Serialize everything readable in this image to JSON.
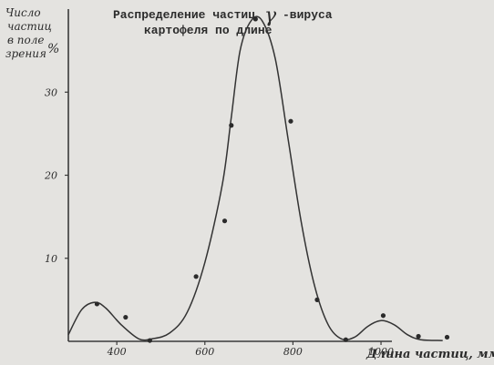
{
  "chart_data": {
    "type": "line",
    "title_line1": "Распределение частиц",
    "title_gamma": "γ",
    "title_line1_end": "-вируса",
    "title_line2": "картофеля по длине",
    "ylabel_lines": [
      "Число",
      "частиц",
      "в поле",
      "зрения",
      "%"
    ],
    "xlabel": "Длина частиц, ммк",
    "xlim": [
      290,
      1180
    ],
    "ylim": [
      0,
      40
    ],
    "x_ticks": [
      400,
      600,
      800,
      1000
    ],
    "x_tick_labels": [
      "400",
      "600",
      "800",
      "1000"
    ],
    "y_ticks": [
      10,
      20,
      30
    ],
    "y_tick_labels": [
      "10",
      "20",
      "30"
    ],
    "series": [
      {
        "curve": [
          {
            "x": 290,
            "y": 0.8
          },
          {
            "x": 320,
            "y": 3.8
          },
          {
            "x": 350,
            "y": 4.7
          },
          {
            "x": 375,
            "y": 4.0
          },
          {
            "x": 410,
            "y": 2.0
          },
          {
            "x": 450,
            "y": 0.3
          },
          {
            "x": 480,
            "y": 0.3
          },
          {
            "x": 520,
            "y": 1.0
          },
          {
            "x": 560,
            "y": 3.5
          },
          {
            "x": 600,
            "y": 9.5
          },
          {
            "x": 640,
            "y": 19.0
          },
          {
            "x": 660,
            "y": 27.0
          },
          {
            "x": 680,
            "y": 35.0
          },
          {
            "x": 705,
            "y": 38.6
          },
          {
            "x": 730,
            "y": 38.6
          },
          {
            "x": 760,
            "y": 34.0
          },
          {
            "x": 790,
            "y": 24.0
          },
          {
            "x": 820,
            "y": 14.0
          },
          {
            "x": 850,
            "y": 6.5
          },
          {
            "x": 880,
            "y": 2.0
          },
          {
            "x": 910,
            "y": 0.3
          },
          {
            "x": 940,
            "y": 0.5
          },
          {
            "x": 970,
            "y": 1.8
          },
          {
            "x": 1000,
            "y": 2.5
          },
          {
            "x": 1030,
            "y": 2.0
          },
          {
            "x": 1060,
            "y": 0.8
          },
          {
            "x": 1090,
            "y": 0.2
          },
          {
            "x": 1140,
            "y": 0.1
          }
        ],
        "points": [
          {
            "x": 355,
            "y": 4.5
          },
          {
            "x": 420,
            "y": 2.9
          },
          {
            "x": 475,
            "y": 0.1
          },
          {
            "x": 580,
            "y": 7.8
          },
          {
            "x": 645,
            "y": 14.5
          },
          {
            "x": 660,
            "y": 26.0
          },
          {
            "x": 715,
            "y": 38.8
          },
          {
            "x": 795,
            "y": 26.5
          },
          {
            "x": 855,
            "y": 5.0
          },
          {
            "x": 920,
            "y": 0.2
          },
          {
            "x": 1005,
            "y": 3.1
          },
          {
            "x": 1085,
            "y": 0.6
          },
          {
            "x": 1150,
            "y": 0.5
          }
        ]
      }
    ]
  }
}
